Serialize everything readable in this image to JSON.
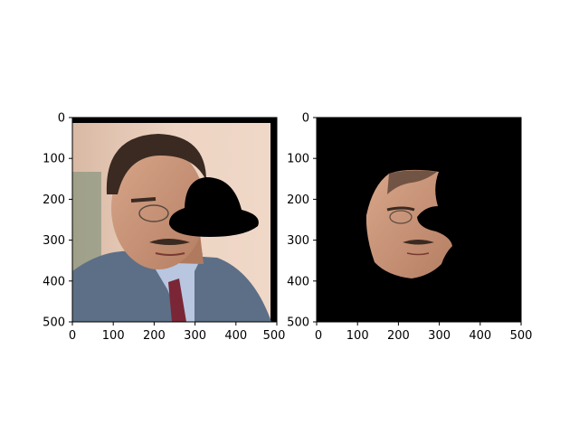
{
  "figure": {
    "panels": [
      {
        "name": "left-panel",
        "xlim": [
          0,
          500
        ],
        "ylim": [
          500,
          0
        ],
        "xticks": [
          "0",
          "100",
          "200",
          "300",
          "400",
          "500"
        ],
        "yticks": [
          "0",
          "100",
          "200",
          "300",
          "400",
          "500"
        ],
        "content": "portrait of a man in suit and tie with a black hat-shaped occlusion over the right side of the face"
      },
      {
        "name": "right-panel",
        "xlim": [
          0,
          500
        ],
        "ylim": [
          500,
          0
        ],
        "xticks": [
          "0",
          "100",
          "200",
          "300",
          "400",
          "500"
        ],
        "yticks": [
          "0",
          "100",
          "200",
          "300",
          "400",
          "500"
        ],
        "content": "segmented face region on black background with occluded area removed"
      }
    ],
    "colors": {
      "skin": "#c79275",
      "suit": "#5d6f86",
      "hair": "#3a2a22",
      "background_left": "#e8cbb8",
      "mask": "#000000"
    }
  }
}
